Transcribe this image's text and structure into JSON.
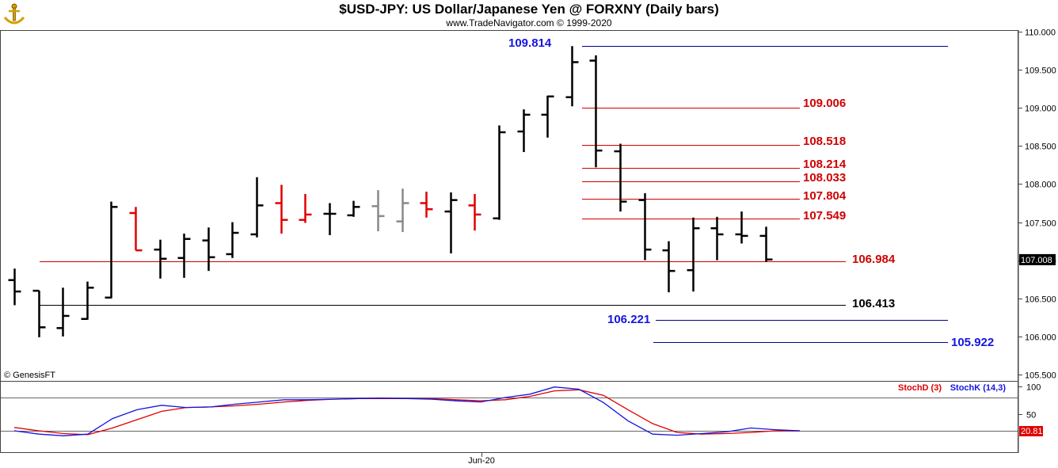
{
  "header": {
    "title": "$USD-JPY:  US Dollar/Japanese Yen @ FORXNY  (Daily bars)",
    "subtitle": "www.TradeNavigator.com © 1999-2020",
    "copyright": "© GenesisFT"
  },
  "chart_data": {
    "type": "ohlc",
    "price_axis": {
      "ticks": [
        "110.000",
        "109.500",
        "109.000",
        "108.500",
        "108.000",
        "107.500",
        "107.000",
        "106.500",
        "106.000",
        "105.500"
      ],
      "ylim": [
        105.3,
        110.1
      ],
      "last_label": "107.008"
    },
    "x_axis": {
      "tick_labels": [
        "Jun-20"
      ]
    },
    "bars": [
      {
        "o": 106.74,
        "h": 106.89,
        "l": 106.41,
        "c": 106.59,
        "color": "#000000"
      },
      {
        "o": 106.6,
        "h": 106.6,
        "l": 105.99,
        "c": 106.12,
        "color": "#000000"
      },
      {
        "o": 106.11,
        "h": 106.64,
        "l": 106.0,
        "c": 106.27,
        "color": "#000000"
      },
      {
        "o": 106.23,
        "h": 106.72,
        "l": 106.22,
        "c": 106.64,
        "color": "#000000"
      },
      {
        "o": 106.51,
        "h": 107.77,
        "l": 106.5,
        "c": 107.7,
        "color": "#000000"
      },
      {
        "o": 107.62,
        "h": 107.7,
        "l": 107.13,
        "c": 107.13,
        "color": "#e00000"
      },
      {
        "o": 107.14,
        "h": 107.27,
        "l": 106.76,
        "c": 107.02,
        "color": "#000000"
      },
      {
        "o": 107.03,
        "h": 107.35,
        "l": 106.77,
        "c": 107.28,
        "color": "#000000"
      },
      {
        "o": 107.26,
        "h": 107.43,
        "l": 106.86,
        "c": 107.04,
        "color": "#000000"
      },
      {
        "o": 107.08,
        "h": 107.5,
        "l": 107.03,
        "c": 107.36,
        "color": "#000000"
      },
      {
        "o": 107.34,
        "h": 108.09,
        "l": 107.3,
        "c": 107.72,
        "color": "#000000"
      },
      {
        "o": 107.75,
        "h": 107.99,
        "l": 107.35,
        "c": 107.53,
        "color": "#e00000"
      },
      {
        "o": 107.53,
        "h": 107.87,
        "l": 107.49,
        "c": 107.6,
        "color": "#e00000"
      },
      {
        "o": 107.61,
        "h": 107.75,
        "l": 107.33,
        "c": 107.61,
        "color": "#000000"
      },
      {
        "o": 107.59,
        "h": 107.78,
        "l": 107.57,
        "c": 107.7,
        "color": "#000000"
      },
      {
        "o": 107.71,
        "h": 107.92,
        "l": 107.38,
        "c": 107.58,
        "color": "#888888"
      },
      {
        "o": 107.51,
        "h": 107.94,
        "l": 107.37,
        "c": 107.75,
        "color": "#888888"
      },
      {
        "o": 107.75,
        "h": 107.9,
        "l": 107.56,
        "c": 107.67,
        "color": "#e00000"
      },
      {
        "o": 107.64,
        "h": 107.89,
        "l": 107.09,
        "c": 107.79,
        "color": "#000000"
      },
      {
        "o": 107.72,
        "h": 107.87,
        "l": 107.39,
        "c": 107.6,
        "color": "#e00000"
      },
      {
        "o": 107.55,
        "h": 108.77,
        "l": 107.53,
        "c": 108.68,
        "color": "#000000"
      },
      {
        "o": 108.69,
        "h": 108.98,
        "l": 108.42,
        "c": 108.91,
        "color": "#000000"
      },
      {
        "o": 108.91,
        "h": 109.16,
        "l": 108.61,
        "c": 109.15,
        "color": "#000000"
      },
      {
        "o": 109.14,
        "h": 109.81,
        "l": 109.02,
        "c": 109.6,
        "color": "#000000"
      },
      {
        "o": 109.62,
        "h": 109.69,
        "l": 108.22,
        "c": 108.44,
        "color": "#000000"
      },
      {
        "o": 108.43,
        "h": 108.53,
        "l": 107.64,
        "c": 107.77,
        "color": "#000000"
      },
      {
        "o": 107.79,
        "h": 107.88,
        "l": 107.0,
        "c": 107.14,
        "color": "#000000"
      },
      {
        "o": 107.13,
        "h": 107.25,
        "l": 106.58,
        "c": 106.86,
        "color": "#000000"
      },
      {
        "o": 106.87,
        "h": 107.56,
        "l": 106.59,
        "c": 107.42,
        "color": "#000000"
      },
      {
        "o": 107.42,
        "h": 107.57,
        "l": 107.0,
        "c": 107.34,
        "color": "#000000"
      },
      {
        "o": 107.34,
        "h": 107.64,
        "l": 107.22,
        "c": 107.32,
        "color": "#000000"
      },
      {
        "o": 107.32,
        "h": 107.44,
        "l": 106.98,
        "c": 107.01,
        "color": "#000000"
      }
    ],
    "levels": [
      {
        "value": 109.814,
        "label": "109.814",
        "line_color": "#00008b",
        "text_color": "#1515e0"
      },
      {
        "value": 109.006,
        "label": "109.006",
        "line_color": "#d00000",
        "text_color": "#d00000"
      },
      {
        "value": 108.518,
        "label": "108.518",
        "line_color": "#d00000",
        "text_color": "#d00000"
      },
      {
        "value": 108.214,
        "label": "108.214",
        "line_color": "#d00000",
        "text_color": "#d00000"
      },
      {
        "value": 108.033,
        "label": "108.033",
        "line_color": "#d00000",
        "text_color": "#d00000"
      },
      {
        "value": 107.804,
        "label": "107.804",
        "line_color": "#d00000",
        "text_color": "#d00000"
      },
      {
        "value": 107.549,
        "label": "107.549",
        "line_color": "#d00000",
        "text_color": "#d00000"
      },
      {
        "value": 106.984,
        "label": "106.984",
        "line_color": "#d00000",
        "text_color": "#d00000"
      },
      {
        "value": 106.413,
        "label": "106.413",
        "line_color": "#000000",
        "text_color": "#000000"
      },
      {
        "value": 106.221,
        "label": "106.221",
        "line_color": "#00008b",
        "text_color": "#1515e0"
      },
      {
        "value": 105.922,
        "label": "105.922",
        "line_color": "#00008b",
        "text_color": "#1515e0"
      }
    ],
    "stochastic": {
      "legend": [
        {
          "label": "StochD (3)",
          "color": "#e00000"
        },
        {
          "label": "StochK (14,3)",
          "color": "#1515e0"
        }
      ],
      "ylim": [
        0,
        100
      ],
      "ticks": [
        "100",
        "50"
      ],
      "reference_levels": [
        80,
        20
      ],
      "last_label": "20.81",
      "x": [
        0,
        2,
        4,
        6,
        8,
        10,
        12,
        14,
        16,
        18,
        20,
        22,
        24,
        26,
        28,
        30,
        32,
        34,
        36,
        38,
        40,
        42,
        44,
        46,
        48,
        50,
        52,
        54,
        56,
        58,
        60,
        62,
        64
      ],
      "k": [
        20,
        14,
        11,
        14,
        42,
        58,
        66,
        62,
        63,
        68,
        72,
        76,
        76,
        77,
        78,
        79,
        78,
        77,
        74,
        72,
        80,
        86,
        99,
        95,
        71,
        38,
        14,
        12,
        15,
        18,
        25,
        22,
        20
      ],
      "d": [
        26,
        20,
        15,
        13,
        25,
        40,
        55,
        62,
        63,
        65,
        68,
        72,
        75,
        77,
        78,
        78,
        78,
        78,
        76,
        74,
        76,
        82,
        92,
        94,
        84,
        58,
        33,
        17,
        14,
        15,
        17,
        20,
        20
      ]
    }
  }
}
